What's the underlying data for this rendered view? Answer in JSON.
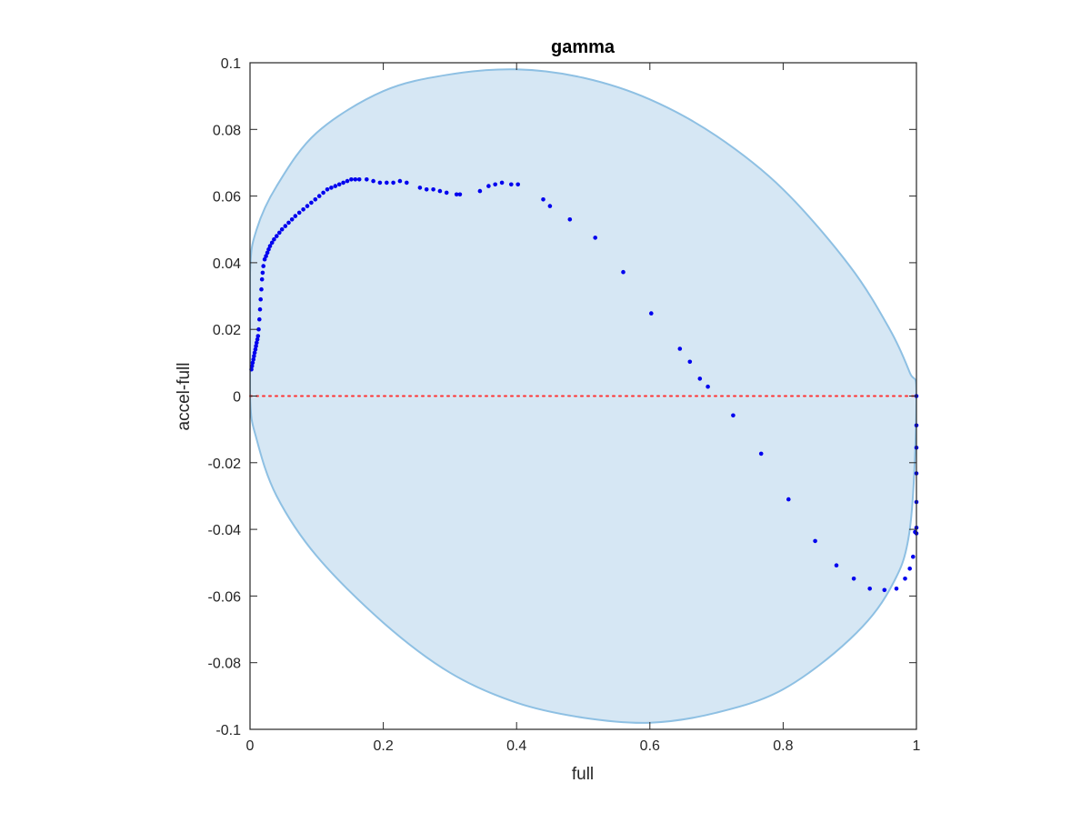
{
  "chart_data": {
    "type": "scatter",
    "title": "gamma",
    "xlabel": "full",
    "ylabel": "accel-full",
    "xlim": [
      0,
      1
    ],
    "ylim": [
      -0.1,
      0.1
    ],
    "xticks": [
      "0",
      "0.2",
      "0.4",
      "0.6",
      "0.8",
      "1"
    ],
    "yticks": [
      "-0.1",
      "-0.08",
      "-0.06",
      "-0.04",
      "-0.02",
      "0",
      "0.02",
      "0.04",
      "0.06",
      "0.08",
      "0.1"
    ],
    "grid": false,
    "legend": "none",
    "colors": {
      "region_fill": "#d6e7f4",
      "region_edge": "#8ec0e3",
      "points": "#0000ee",
      "reference_line": "#ff3333",
      "axes": "#262626"
    },
    "region_boundary": {
      "x": [
        0.0,
        0.01,
        0.04,
        0.1,
        0.2,
        0.3,
        0.4,
        0.5,
        0.6,
        0.7,
        0.8,
        0.9,
        0.96,
        0.99,
        1.0,
        0.99,
        0.96,
        0.9,
        0.8,
        0.7,
        0.6,
        0.5,
        0.4,
        0.3,
        0.2,
        0.1,
        0.04,
        0.01,
        0.0
      ],
      "y": [
        0.037,
        0.05,
        0.063,
        0.079,
        0.0915,
        0.0965,
        0.098,
        0.0955,
        0.089,
        0.078,
        0.062,
        0.039,
        0.02,
        0.007,
        0.0,
        -0.04,
        -0.058,
        -0.073,
        -0.088,
        -0.095,
        -0.098,
        -0.0965,
        -0.092,
        -0.083,
        -0.068,
        -0.048,
        -0.03,
        -0.013,
        0.0
      ]
    },
    "reference_line": {
      "y": 0,
      "style": "dotted"
    },
    "series": [
      {
        "x": [
          0.002,
          0.003,
          0.004,
          0.005,
          0.006,
          0.007,
          0.008,
          0.009,
          0.01,
          0.011,
          0.012,
          0.013,
          0.014,
          0.015,
          0.016,
          0.017,
          0.018,
          0.019,
          0.02,
          0.022,
          0.024,
          0.026,
          0.028,
          0.03,
          0.033,
          0.036,
          0.04,
          0.044,
          0.048,
          0.053,
          0.058,
          0.063,
          0.068,
          0.074,
          0.08,
          0.086,
          0.092,
          0.098,
          0.104,
          0.11,
          0.116,
          0.122,
          0.128,
          0.134,
          0.14,
          0.146,
          0.152,
          0.158,
          0.164,
          0.175,
          0.185,
          0.195,
          0.205,
          0.215,
          0.225,
          0.235,
          0.255,
          0.265,
          0.275,
          0.285,
          0.295,
          0.31,
          0.315,
          0.345,
          0.358,
          0.368,
          0.378,
          0.392,
          0.402,
          0.44,
          0.45,
          0.48,
          0.518,
          0.56,
          0.602,
          0.645,
          0.66,
          0.675,
          0.687,
          0.725,
          0.767,
          0.808,
          0.848,
          0.88,
          0.906,
          0.93,
          0.952,
          0.97,
          0.983,
          0.99,
          0.995,
          0.998,
          1.0,
          1.0,
          1.0,
          1.0,
          1.0,
          1.0,
          1.0
        ],
        "y": [
          0.008,
          0.009,
          0.01,
          0.011,
          0.012,
          0.013,
          0.014,
          0.015,
          0.016,
          0.017,
          0.018,
          0.02,
          0.023,
          0.026,
          0.029,
          0.032,
          0.035,
          0.037,
          0.039,
          0.041,
          0.042,
          0.043,
          0.044,
          0.045,
          0.046,
          0.047,
          0.048,
          0.049,
          0.05,
          0.051,
          0.052,
          0.053,
          0.054,
          0.055,
          0.056,
          0.057,
          0.058,
          0.059,
          0.06,
          0.061,
          0.062,
          0.0625,
          0.063,
          0.0635,
          0.064,
          0.0645,
          0.065,
          0.065,
          0.065,
          0.065,
          0.0645,
          0.064,
          0.064,
          0.064,
          0.0645,
          0.064,
          0.0625,
          0.062,
          0.062,
          0.0615,
          0.061,
          0.0605,
          0.0605,
          0.0615,
          0.063,
          0.0635,
          0.064,
          0.0635,
          0.0635,
          0.059,
          0.057,
          0.053,
          0.0475,
          0.0372,
          0.0248,
          0.0142,
          0.0103,
          0.0052,
          0.0028,
          -0.0058,
          -0.0173,
          -0.031,
          -0.0435,
          -0.0508,
          -0.0548,
          -0.0578,
          -0.0582,
          -0.0578,
          -0.0548,
          -0.0518,
          -0.0482,
          -0.0408,
          0.0,
          -0.0088,
          -0.0155,
          -0.0232,
          -0.0318,
          -0.0395,
          -0.0412
        ]
      }
    ]
  }
}
